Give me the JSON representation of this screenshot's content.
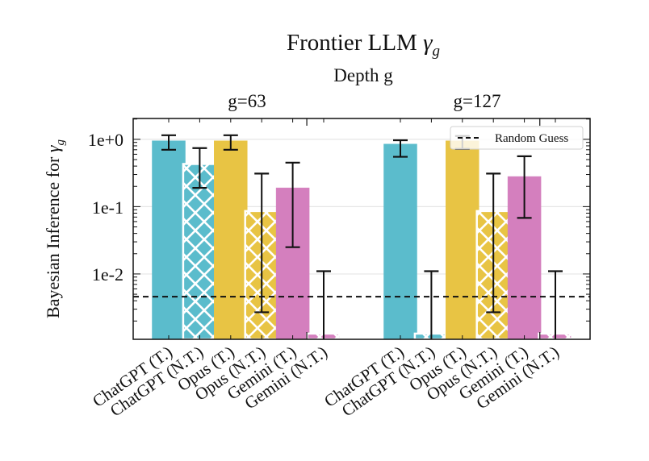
{
  "chart_data": {
    "type": "bar",
    "title": "Frontier LLM",
    "title_symbol": "γ",
    "title_subscript": "g",
    "subtitle": "Depth g",
    "ylabel": "Bayesian Inference for",
    "ylabel_symbol": "γ",
    "ylabel_subscript": "g",
    "yscale": "log",
    "ylim": [
      0.00107,
      2.04
    ],
    "yticks": [
      1,
      0.1,
      0.01
    ],
    "ytick_labels": [
      "1e+0",
      "1e-1",
      "1e-2"
    ],
    "grid": "horizontal",
    "groups": [
      {
        "label": "g=63"
      },
      {
        "label": "g=127"
      }
    ],
    "categories": [
      "ChatGPT (T.)",
      "ChatGPT (N.T.)",
      "Opus (T.)",
      "Opus (N.T.)",
      "Gemini (T.)",
      "Gemini (N.T.)"
    ],
    "series": [
      {
        "name": "g=63",
        "values": [
          0.95,
          0.43,
          0.95,
          0.086,
          0.19,
          0.0013
        ],
        "err_low": [
          0.7,
          0.19,
          0.7,
          0.0027,
          0.025,
          null
        ],
        "err_high": [
          1.15,
          0.74,
          1.15,
          0.31,
          0.45,
          0.011
        ]
      },
      {
        "name": "g=127",
        "values": [
          0.85,
          0.0013,
          0.95,
          0.086,
          0.28,
          0.0013
        ],
        "err_low": [
          0.55,
          null,
          0.72,
          0.0027,
          0.068,
          null
        ],
        "err_high": [
          0.97,
          0.011,
          1.12,
          0.31,
          0.56,
          0.011
        ]
      }
    ],
    "category_colors": [
      "#5bbccc",
      "#5bbccc",
      "#e8c444",
      "#e8c444",
      "#d47fbe",
      "#d47fbe"
    ],
    "hatched": [
      false,
      true,
      false,
      true,
      false,
      true
    ],
    "reference_line": {
      "label": "Random Guess",
      "value": 0.0046,
      "style": "dashed"
    },
    "legend": {
      "position": "top-right",
      "entries": [
        "Random Guess"
      ]
    }
  }
}
